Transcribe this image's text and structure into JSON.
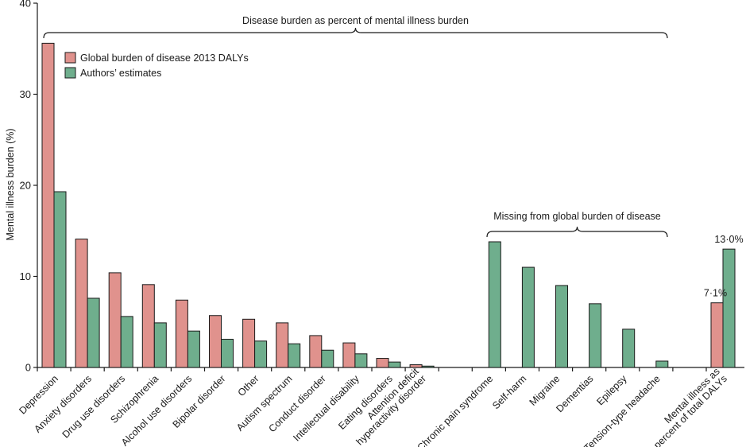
{
  "chart_data": {
    "type": "bar",
    "ylabel": "Mental illness burden (%)",
    "ylim": [
      0,
      40
    ],
    "yticks": [
      0,
      10,
      20,
      30,
      40
    ],
    "grid": false,
    "legend_position": "top-left",
    "categories": [
      [
        "Depression"
      ],
      [
        "Anxiety disorders"
      ],
      [
        "Drug use disorders"
      ],
      [
        "Schizophrenia"
      ],
      [
        "Alcohol use disorders"
      ],
      [
        "Bipolar disorder"
      ],
      [
        "Other"
      ],
      [
        "Autism spectrum"
      ],
      [
        "Conduct disorder"
      ],
      [
        "Intellectual disability"
      ],
      [
        "Eating disorders"
      ],
      [
        "Attention deficit",
        "hyperactivity disorder"
      ],
      [
        "Chronic pain syndrome"
      ],
      [
        "Self-harm"
      ],
      [
        "Migraine"
      ],
      [
        "Dementias"
      ],
      [
        "Epilepsy"
      ],
      [
        "Tension-type headache"
      ],
      [
        "Mental illness as",
        "percent of total DALYs"
      ]
    ],
    "series": [
      {
        "name": "Global burden of disease 2013 DALYs",
        "color": "#e0928d",
        "values": [
          35.6,
          14.1,
          10.4,
          9.1,
          7.4,
          5.7,
          5.3,
          4.9,
          3.5,
          2.7,
          1.0,
          0.3,
          null,
          null,
          null,
          null,
          null,
          null,
          7.1
        ]
      },
      {
        "name": "Authors’ estimates",
        "color": "#6fae8d",
        "values": [
          19.3,
          7.6,
          5.6,
          4.9,
          4.0,
          3.1,
          2.9,
          2.6,
          1.9,
          1.5,
          0.6,
          0.15,
          13.8,
          11.0,
          9.0,
          7.0,
          4.2,
          0.7,
          13.0
        ]
      }
    ],
    "annotations": {
      "top_brace": "Disease burden as percent of mental illness burden",
      "missing_brace": "Missing from global burden of disease",
      "total_gbd_label": "7·1%",
      "total_authors_label": "13·0%"
    }
  },
  "colors": {
    "axis": "#1a1a1a",
    "bar_stroke": "#1a1a1a"
  }
}
